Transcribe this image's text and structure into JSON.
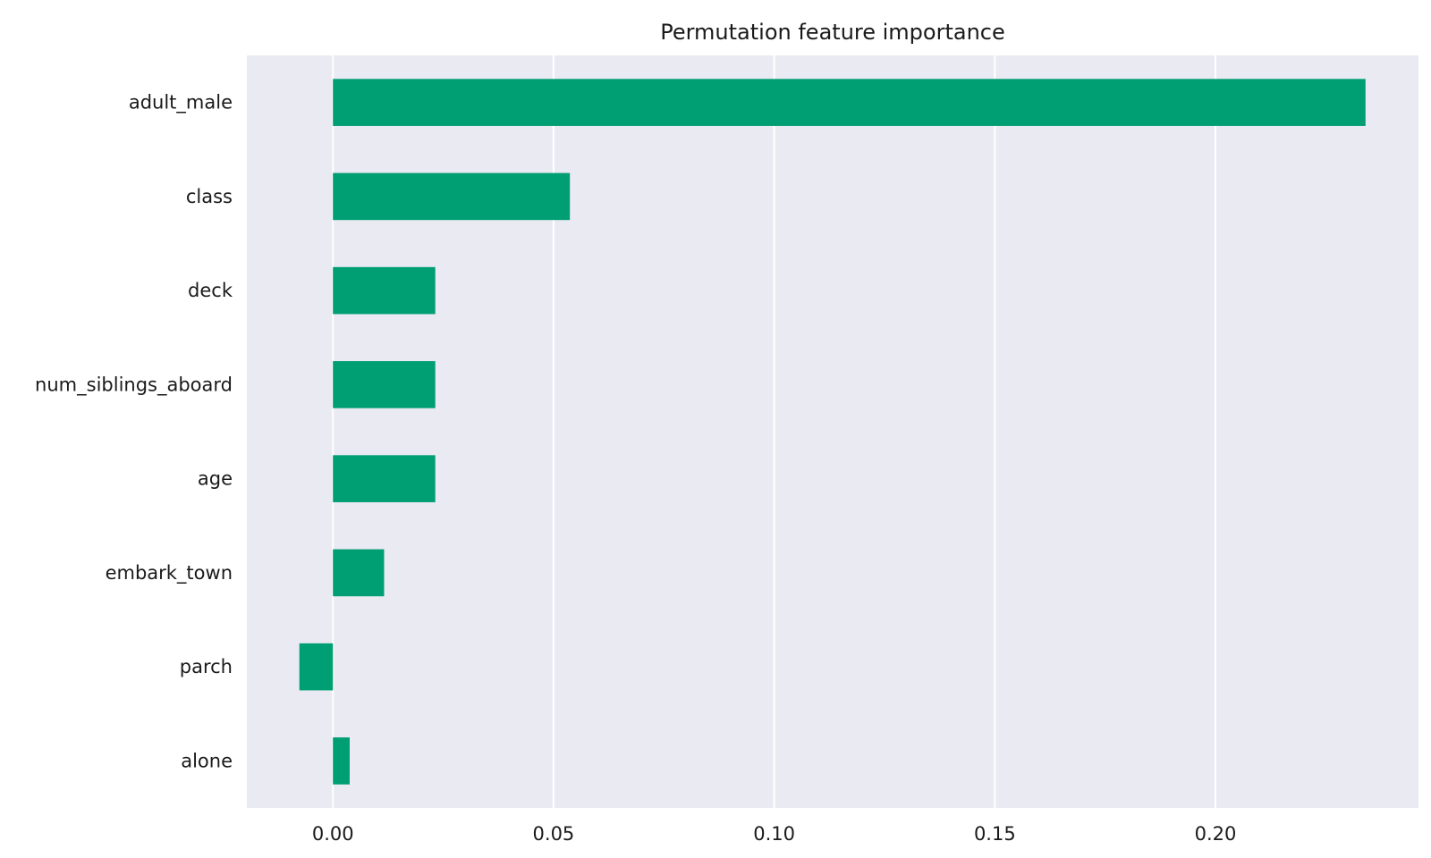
{
  "chart_data": {
    "type": "bar",
    "orientation": "horizontal",
    "title": "Permutation feature importance",
    "xlabel": "",
    "ylabel": "",
    "categories": [
      "adult_male",
      "class",
      "deck",
      "num_siblings_aboard",
      "age",
      "embark_town",
      "parch",
      "alone"
    ],
    "values": [
      0.234,
      0.0537,
      0.0232,
      0.0232,
      0.0232,
      0.0116,
      -0.0076,
      0.0038
    ],
    "xlim": [
      -0.0195,
      0.246
    ],
    "xticks": [
      0.0,
      0.05,
      0.1,
      0.15,
      0.2
    ],
    "xtick_labels": [
      "0.00",
      "0.05",
      "0.10",
      "0.15",
      "0.20"
    ],
    "grid": "vertical",
    "legend": "none",
    "bar_color": "#009e73",
    "background_color": "#eaeaf2",
    "grid_color": "#ffffff"
  }
}
